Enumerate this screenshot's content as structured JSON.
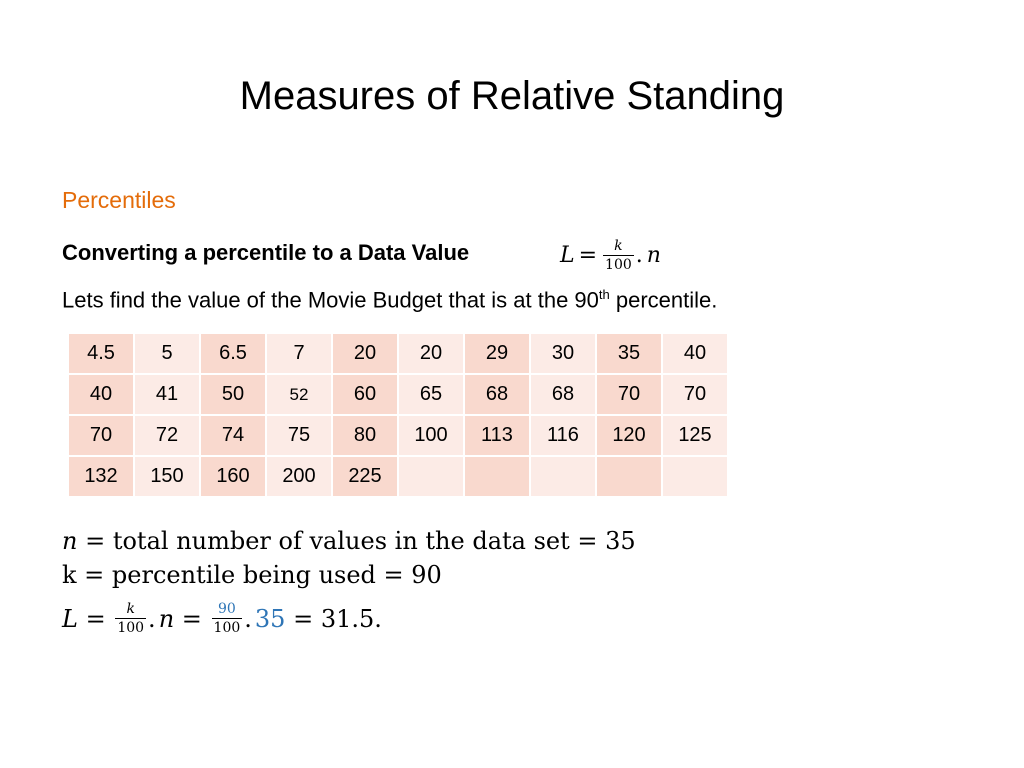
{
  "title": "Measures of Relative Standing",
  "subtitle": "Percentiles",
  "converting": {
    "label": "Converting a percentile to a Data Value",
    "formula": {
      "lhs": "L",
      "eq": "=",
      "num": "k",
      "den": "100",
      "dot": ".",
      "n": "n"
    }
  },
  "sentence": {
    "before": "Lets find the value of the Movie Budget that is at the 90",
    "sup": "th",
    "after": " percentile."
  },
  "table": {
    "rows": [
      [
        "4.5",
        "5",
        "6.5",
        "7",
        "20",
        "20",
        "29",
        "30",
        "35",
        "40"
      ],
      [
        "40",
        "41",
        "50",
        "52",
        "60",
        "65",
        "68",
        "68",
        "70",
        "70"
      ],
      [
        "70",
        "72",
        "74",
        "75",
        "80",
        "100",
        "113",
        "116",
        "120",
        "125"
      ],
      [
        "132",
        "150",
        "160",
        "200",
        "225",
        "",
        "",
        "",
        "",
        ""
      ]
    ]
  },
  "equations": {
    "n_line": {
      "var": "n",
      "text": " = total number of values in the data set = 35"
    },
    "k_line": {
      "text": "k = percentile being used = 90"
    },
    "L_line": {
      "lhs": "L",
      "eq": " = ",
      "num1": "k",
      "den1": "100",
      "dot1": ".",
      "n": "n",
      "eq2": " = ",
      "num2": "90",
      "den2": "100",
      "dot2": ".",
      "val": "35",
      "result": " = 31.5."
    }
  },
  "colors": {
    "subtitle": "#e46c0a",
    "highlight": "#2e75b6",
    "cell_dark": "#f9d9ce",
    "cell_light": "#fcebe6"
  }
}
